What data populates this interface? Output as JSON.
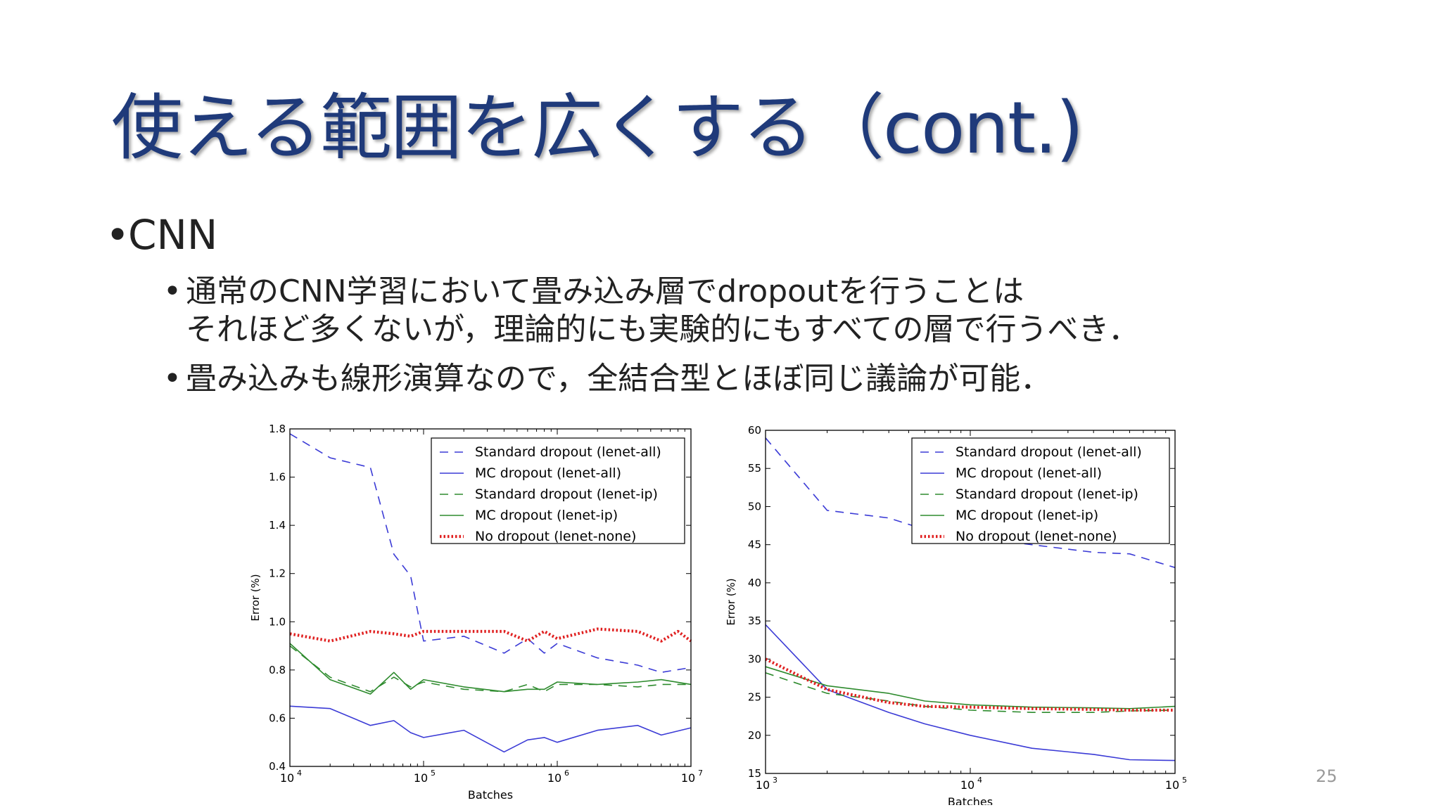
{
  "slide": {
    "title": "使える範囲を広くする（cont.)",
    "bullet1": "CNN",
    "sub1_line1": "通常のCNN学習において畳み込み層でdropoutを行うことは",
    "sub1_line2": "それほど多くないが，理論的にも実験的にもすべての層で行うべき．",
    "sub2": "畳み込みも線形演算なので，全結合型とほぼ同じ議論が可能．",
    "page_number": "25"
  },
  "chart_data": [
    {
      "type": "line",
      "xlabel": "Batches",
      "ylabel": "Error (%)",
      "xscale": "log",
      "xlim": [
        10000,
        10000000
      ],
      "ylim": [
        0.4,
        1.8
      ],
      "x_ticks": [
        {
          "value": 10000,
          "base": "10",
          "exp": "4"
        },
        {
          "value": 100000,
          "base": "10",
          "exp": "5"
        },
        {
          "value": 1000000,
          "base": "10",
          "exp": "6"
        },
        {
          "value": 10000000,
          "base": "10",
          "exp": "7"
        }
      ],
      "y_ticks": [
        "0.4",
        "0.6",
        "0.8",
        "1.0",
        "1.2",
        "1.4",
        "1.6",
        "1.8"
      ],
      "legend_position": "top-right",
      "series": [
        {
          "name": "Standard dropout (lenet-all)",
          "color": "#3b3bd6",
          "style": "dashed",
          "points": [
            [
              10000,
              1.78
            ],
            [
              20000,
              1.68
            ],
            [
              40000,
              1.64
            ],
            [
              60000,
              1.28
            ],
            [
              80000,
              1.19
            ],
            [
              100000,
              0.92
            ],
            [
              200000,
              0.94
            ],
            [
              400000,
              0.87
            ],
            [
              600000,
              0.93
            ],
            [
              800000,
              0.87
            ],
            [
              1000000,
              0.91
            ],
            [
              2000000,
              0.85
            ],
            [
              4000000,
              0.82
            ],
            [
              6000000,
              0.79
            ],
            [
              10000000,
              0.81
            ]
          ]
        },
        {
          "name": "MC dropout (lenet-all)",
          "color": "#3b3bd6",
          "style": "solid",
          "points": [
            [
              10000,
              0.65
            ],
            [
              20000,
              0.64
            ],
            [
              40000,
              0.57
            ],
            [
              60000,
              0.59
            ],
            [
              80000,
              0.54
            ],
            [
              100000,
              0.52
            ],
            [
              200000,
              0.55
            ],
            [
              400000,
              0.46
            ],
            [
              600000,
              0.51
            ],
            [
              800000,
              0.52
            ],
            [
              1000000,
              0.5
            ],
            [
              2000000,
              0.55
            ],
            [
              4000000,
              0.57
            ],
            [
              6000000,
              0.53
            ],
            [
              10000000,
              0.56
            ]
          ]
        },
        {
          "name": "Standard dropout (lenet-ip)",
          "color": "#2e8b2e",
          "style": "dashed",
          "points": [
            [
              10000,
              0.9
            ],
            [
              20000,
              0.77
            ],
            [
              40000,
              0.71
            ],
            [
              60000,
              0.77
            ],
            [
              80000,
              0.73
            ],
            [
              100000,
              0.75
            ],
            [
              200000,
              0.72
            ],
            [
              400000,
              0.71
            ],
            [
              600000,
              0.74
            ],
            [
              800000,
              0.71
            ],
            [
              1000000,
              0.74
            ],
            [
              2000000,
              0.74
            ],
            [
              4000000,
              0.73
            ],
            [
              6000000,
              0.74
            ],
            [
              10000000,
              0.74
            ]
          ]
        },
        {
          "name": "MC dropout (lenet-ip)",
          "color": "#2e8b2e",
          "style": "solid",
          "points": [
            [
              10000,
              0.91
            ],
            [
              20000,
              0.76
            ],
            [
              40000,
              0.7
            ],
            [
              60000,
              0.79
            ],
            [
              80000,
              0.72
            ],
            [
              100000,
              0.76
            ],
            [
              200000,
              0.73
            ],
            [
              400000,
              0.71
            ],
            [
              600000,
              0.72
            ],
            [
              800000,
              0.72
            ],
            [
              1000000,
              0.75
            ],
            [
              2000000,
              0.74
            ],
            [
              4000000,
              0.75
            ],
            [
              6000000,
              0.76
            ],
            [
              10000000,
              0.74
            ]
          ]
        },
        {
          "name": "No dropout (lenet-none)",
          "color": "#e02020",
          "style": "dotted",
          "points": [
            [
              10000,
              0.95
            ],
            [
              20000,
              0.92
            ],
            [
              40000,
              0.96
            ],
            [
              60000,
              0.95
            ],
            [
              80000,
              0.94
            ],
            [
              100000,
              0.96
            ],
            [
              200000,
              0.96
            ],
            [
              400000,
              0.96
            ],
            [
              600000,
              0.92
            ],
            [
              800000,
              0.96
            ],
            [
              1000000,
              0.93
            ],
            [
              2000000,
              0.97
            ],
            [
              4000000,
              0.96
            ],
            [
              6000000,
              0.92
            ],
            [
              8000000,
              0.96
            ],
            [
              10000000,
              0.92
            ]
          ]
        }
      ]
    },
    {
      "type": "line",
      "xlabel": "Batches",
      "ylabel": "Error (%)",
      "xscale": "log",
      "xlim": [
        1000,
        100000
      ],
      "ylim": [
        15,
        60
      ],
      "x_ticks": [
        {
          "value": 1000,
          "base": "10",
          "exp": "3"
        },
        {
          "value": 10000,
          "base": "10",
          "exp": "4"
        },
        {
          "value": 100000,
          "base": "10",
          "exp": "5"
        }
      ],
      "y_ticks": [
        "15",
        "20",
        "25",
        "30",
        "35",
        "40",
        "45",
        "50",
        "55",
        "60"
      ],
      "legend_position": "top-right",
      "series": [
        {
          "name": "Standard dropout (lenet-all)",
          "color": "#3b3bd6",
          "style": "dashed",
          "points": [
            [
              1000,
              59
            ],
            [
              2000,
              49.5
            ],
            [
              4000,
              48.5
            ],
            [
              6000,
              47
            ],
            [
              10000,
              46
            ],
            [
              20000,
              45
            ],
            [
              40000,
              44
            ],
            [
              60000,
              43.8
            ],
            [
              100000,
              42
            ]
          ]
        },
        {
          "name": "MC dropout (lenet-all)",
          "color": "#3b3bd6",
          "style": "solid",
          "points": [
            [
              1000,
              34.5
            ],
            [
              2000,
              26
            ],
            [
              4000,
              23
            ],
            [
              6000,
              21.5
            ],
            [
              10000,
              20
            ],
            [
              20000,
              18.3
            ],
            [
              40000,
              17.5
            ],
            [
              60000,
              16.8
            ],
            [
              100000,
              16.7
            ]
          ]
        },
        {
          "name": "Standard dropout (lenet-ip)",
          "color": "#2e8b2e",
          "style": "dashed",
          "points": [
            [
              1000,
              28.2
            ],
            [
              2000,
              25.5
            ],
            [
              4000,
              24.5
            ],
            [
              6000,
              23.8
            ],
            [
              10000,
              23.3
            ],
            [
              20000,
              23
            ],
            [
              40000,
              23
            ],
            [
              60000,
              23.2
            ],
            [
              100000,
              23.3
            ]
          ]
        },
        {
          "name": "MC dropout (lenet-ip)",
          "color": "#2e8b2e",
          "style": "solid",
          "points": [
            [
              1000,
              29
            ],
            [
              2000,
              26.5
            ],
            [
              4000,
              25.5
            ],
            [
              6000,
              24.5
            ],
            [
              10000,
              24
            ],
            [
              20000,
              23.7
            ],
            [
              40000,
              23.6
            ],
            [
              60000,
              23.5
            ],
            [
              100000,
              23.8
            ]
          ]
        },
        {
          "name": "No dropout (lenet-none)",
          "color": "#e02020",
          "style": "dotted",
          "points": [
            [
              1000,
              30
            ],
            [
              2000,
              26
            ],
            [
              4000,
              24.3
            ],
            [
              6000,
              23.8
            ],
            [
              10000,
              23.7
            ],
            [
              20000,
              23.5
            ],
            [
              40000,
              23.4
            ],
            [
              60000,
              23.3
            ],
            [
              100000,
              23.3
            ]
          ]
        }
      ]
    }
  ]
}
